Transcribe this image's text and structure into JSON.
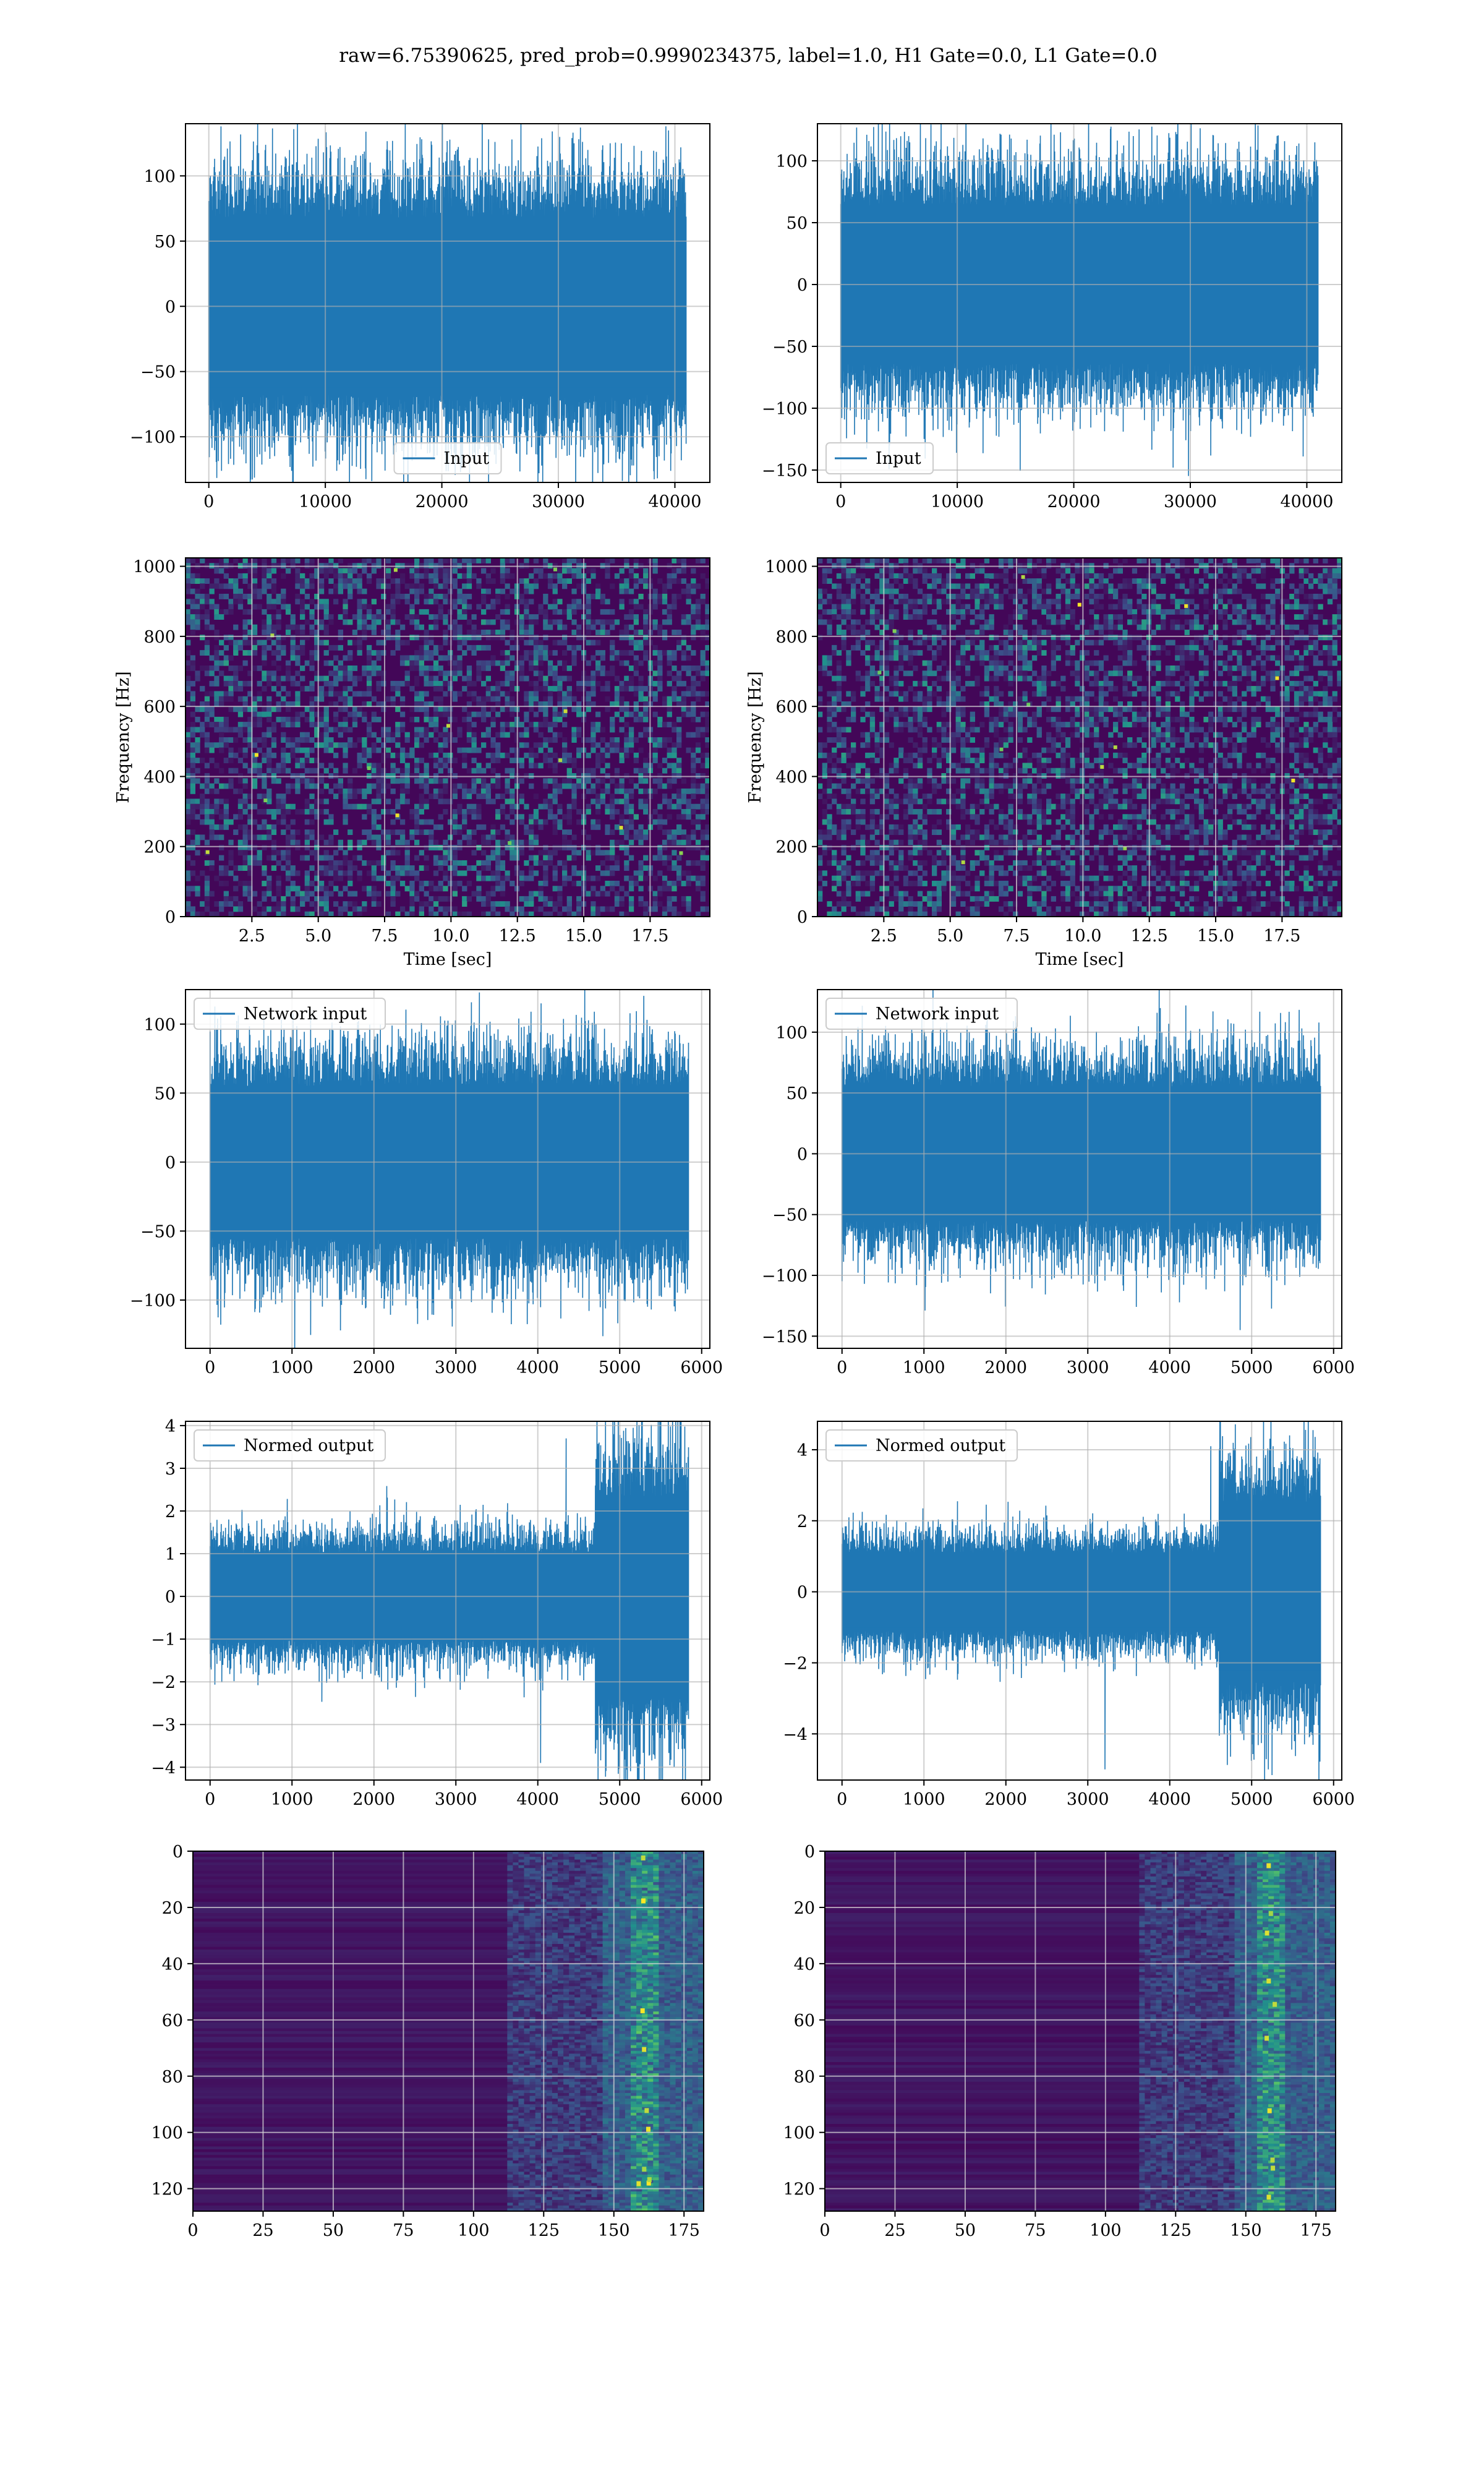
{
  "figure": {
    "title": "raw=6.75390625, pred_prob=0.9990234375, label=1.0, H1 Gate=0.0, L1 Gate=0.0",
    "line_color": "#1f77b4",
    "grid_color": "#b0b0b0"
  },
  "chart_data": [
    {
      "id": "h1-input",
      "type": "line",
      "series": [
        {
          "name": "Input"
        }
      ],
      "legend_position": "lower-center",
      "xlim": [
        -2000,
        43000
      ],
      "ylim": [
        -135,
        140
      ],
      "xticks": [
        0,
        10000,
        20000,
        30000,
        40000
      ],
      "xtick_labels": [
        "0",
        "10000",
        "20000",
        "30000",
        "40000"
      ],
      "yticks": [
        -100,
        -50,
        0,
        50,
        100
      ],
      "ytick_labels": [
        "−100",
        "−50",
        "0",
        "50",
        "100"
      ],
      "n_points": 40960,
      "x_range": [
        0,
        40960
      ],
      "envelope_typical": [
        -80,
        80
      ],
      "peaks": [
        128,
        -120
      ],
      "grid": true
    },
    {
      "id": "l1-input",
      "type": "line",
      "series": [
        {
          "name": "Input"
        }
      ],
      "legend_position": "lower-left",
      "xlim": [
        -2000,
        43000
      ],
      "ylim": [
        -160,
        130
      ],
      "xticks": [
        0,
        10000,
        20000,
        30000,
        40000
      ],
      "xtick_labels": [
        "0",
        "10000",
        "20000",
        "30000",
        "40000"
      ],
      "yticks": [
        -150,
        -100,
        -50,
        0,
        50,
        100
      ],
      "ytick_labels": [
        "−150",
        "−100",
        "−50",
        "0",
        "50",
        "100"
      ],
      "n_points": 40960,
      "x_range": [
        0,
        40960
      ],
      "envelope_typical": [
        -75,
        75
      ],
      "peaks": [
        120,
        -148
      ],
      "grid": true
    },
    {
      "id": "h1-spectrogram",
      "type": "heatmap",
      "colormap": "viridis",
      "xlabel": "Time [sec]",
      "ylabel": "Frequency [Hz]",
      "xlim": [
        0,
        19.75
      ],
      "ylim": [
        0,
        1024
      ],
      "xticks": [
        2.5,
        5.0,
        7.5,
        10.0,
        12.5,
        15.0,
        17.5
      ],
      "xtick_labels": [
        "2.5",
        "5.0",
        "7.5",
        "10.0",
        "12.5",
        "15.0",
        "17.5"
      ],
      "yticks": [
        0,
        200,
        400,
        600,
        800,
        1000
      ],
      "ytick_labels": [
        "0",
        "200",
        "400",
        "600",
        "800",
        "1000"
      ],
      "grid": true
    },
    {
      "id": "l1-spectrogram",
      "type": "heatmap",
      "colormap": "viridis",
      "xlabel": "Time [sec]",
      "ylabel": "Frequency [Hz]",
      "xlim": [
        0,
        19.75
      ],
      "ylim": [
        0,
        1024
      ],
      "xticks": [
        2.5,
        5.0,
        7.5,
        10.0,
        12.5,
        15.0,
        17.5
      ],
      "xtick_labels": [
        "2.5",
        "5.0",
        "7.5",
        "10.0",
        "12.5",
        "15.0",
        "17.5"
      ],
      "yticks": [
        0,
        200,
        400,
        600,
        800,
        1000
      ],
      "ytick_labels": [
        "0",
        "200",
        "400",
        "600",
        "800",
        "1000"
      ],
      "grid": true
    },
    {
      "id": "h1-network-input",
      "type": "line",
      "series": [
        {
          "name": "Network input"
        }
      ],
      "legend_position": "upper-left",
      "xlim": [
        -300,
        6100
      ],
      "ylim": [
        -135,
        125
      ],
      "xticks": [
        0,
        1000,
        2000,
        3000,
        4000,
        5000,
        6000
      ],
      "xtick_labels": [
        "0",
        "1000",
        "2000",
        "3000",
        "4000",
        "5000",
        "6000"
      ],
      "yticks": [
        -100,
        -50,
        0,
        50,
        100
      ],
      "ytick_labels": [
        "−100",
        "−50",
        "0",
        "50",
        "100"
      ],
      "n_points": 5840,
      "x_range": [
        0,
        5840
      ],
      "envelope_typical": [
        -65,
        65
      ],
      "peaks": [
        115,
        -122
      ],
      "grid": true
    },
    {
      "id": "l1-network-input",
      "type": "line",
      "series": [
        {
          "name": "Network input"
        }
      ],
      "legend_position": "upper-left",
      "xlim": [
        -300,
        6100
      ],
      "ylim": [
        -160,
        135
      ],
      "xticks": [
        0,
        1000,
        2000,
        3000,
        4000,
        5000,
        6000
      ],
      "xtick_labels": [
        "0",
        "1000",
        "2000",
        "3000",
        "4000",
        "5000",
        "6000"
      ],
      "yticks": [
        -150,
        -100,
        -50,
        0,
        50,
        100
      ],
      "ytick_labels": [
        "−150",
        "−100",
        "−50",
        "0",
        "50",
        "100"
      ],
      "n_points": 5840,
      "x_range": [
        0,
        5840
      ],
      "envelope_typical": [
        -65,
        65
      ],
      "peaks": [
        122,
        -145
      ],
      "grid": true
    },
    {
      "id": "h1-normed-output",
      "type": "line",
      "series": [
        {
          "name": "Normed output"
        }
      ],
      "legend_position": "upper-left",
      "xlim": [
        -300,
        6100
      ],
      "ylim": [
        -4.3,
        4.1
      ],
      "xticks": [
        0,
        1000,
        2000,
        3000,
        4000,
        5000,
        6000
      ],
      "xtick_labels": [
        "0",
        "1000",
        "2000",
        "3000",
        "4000",
        "5000",
        "6000"
      ],
      "yticks": [
        -4,
        -3,
        -2,
        -1,
        0,
        1,
        2,
        3,
        4
      ],
      "ytick_labels": [
        "−4",
        "−3",
        "−2",
        "−1",
        "0",
        "1",
        "2",
        "3",
        "4"
      ],
      "n_points": 5840,
      "x_range": [
        0,
        5840
      ],
      "envelope_typical": [
        -1.2,
        1.2
      ],
      "burst_x_range": [
        4700,
        5840
      ],
      "peaks": [
        3.7,
        -3.9
      ],
      "grid": true
    },
    {
      "id": "l1-normed-output",
      "type": "line",
      "series": [
        {
          "name": "Normed output"
        }
      ],
      "legend_position": "upper-left",
      "xlim": [
        -300,
        6100
      ],
      "ylim": [
        -5.3,
        4.8
      ],
      "xticks": [
        0,
        1000,
        2000,
        3000,
        4000,
        5000,
        6000
      ],
      "xtick_labels": [
        "0",
        "1000",
        "2000",
        "3000",
        "4000",
        "5000",
        "6000"
      ],
      "yticks": [
        -4,
        -2,
        0,
        2,
        4
      ],
      "ytick_labels": [
        "−4",
        "−2",
        "0",
        "2",
        "4"
      ],
      "n_points": 5840,
      "x_range": [
        0,
        5840
      ],
      "envelope_typical": [
        -1.3,
        1.3
      ],
      "burst_x_range": [
        4600,
        5840
      ],
      "peaks": [
        4.1,
        -5.0
      ],
      "grid": true
    },
    {
      "id": "h1-feature-map",
      "type": "heatmap",
      "colormap": "viridis",
      "xlim": [
        0,
        182
      ],
      "ylim": [
        128,
        0
      ],
      "xticks": [
        0,
        25,
        50,
        75,
        100,
        125,
        150,
        175
      ],
      "xtick_labels": [
        "0",
        "25",
        "50",
        "75",
        "100",
        "125",
        "150",
        "175"
      ],
      "yticks": [
        0,
        20,
        40,
        60,
        80,
        100,
        120
      ],
      "ytick_labels": [
        "0",
        "20",
        "40",
        "60",
        "80",
        "100",
        "120"
      ],
      "active_x_range": [
        110,
        182
      ],
      "hotspot_x": 160,
      "grid": true
    },
    {
      "id": "l1-feature-map",
      "type": "heatmap",
      "colormap": "viridis",
      "xlim": [
        0,
        182
      ],
      "ylim": [
        128,
        0
      ],
      "xticks": [
        0,
        25,
        50,
        75,
        100,
        125,
        150,
        175
      ],
      "xtick_labels": [
        "0",
        "25",
        "50",
        "75",
        "100",
        "125",
        "150",
        "175"
      ],
      "yticks": [
        0,
        20,
        40,
        60,
        80,
        100,
        120
      ],
      "ytick_labels": [
        "0",
        "20",
        "40",
        "60",
        "80",
        "100",
        "120"
      ],
      "active_x_range": [
        110,
        182
      ],
      "hotspot_x": 158,
      "grid": true
    }
  ]
}
